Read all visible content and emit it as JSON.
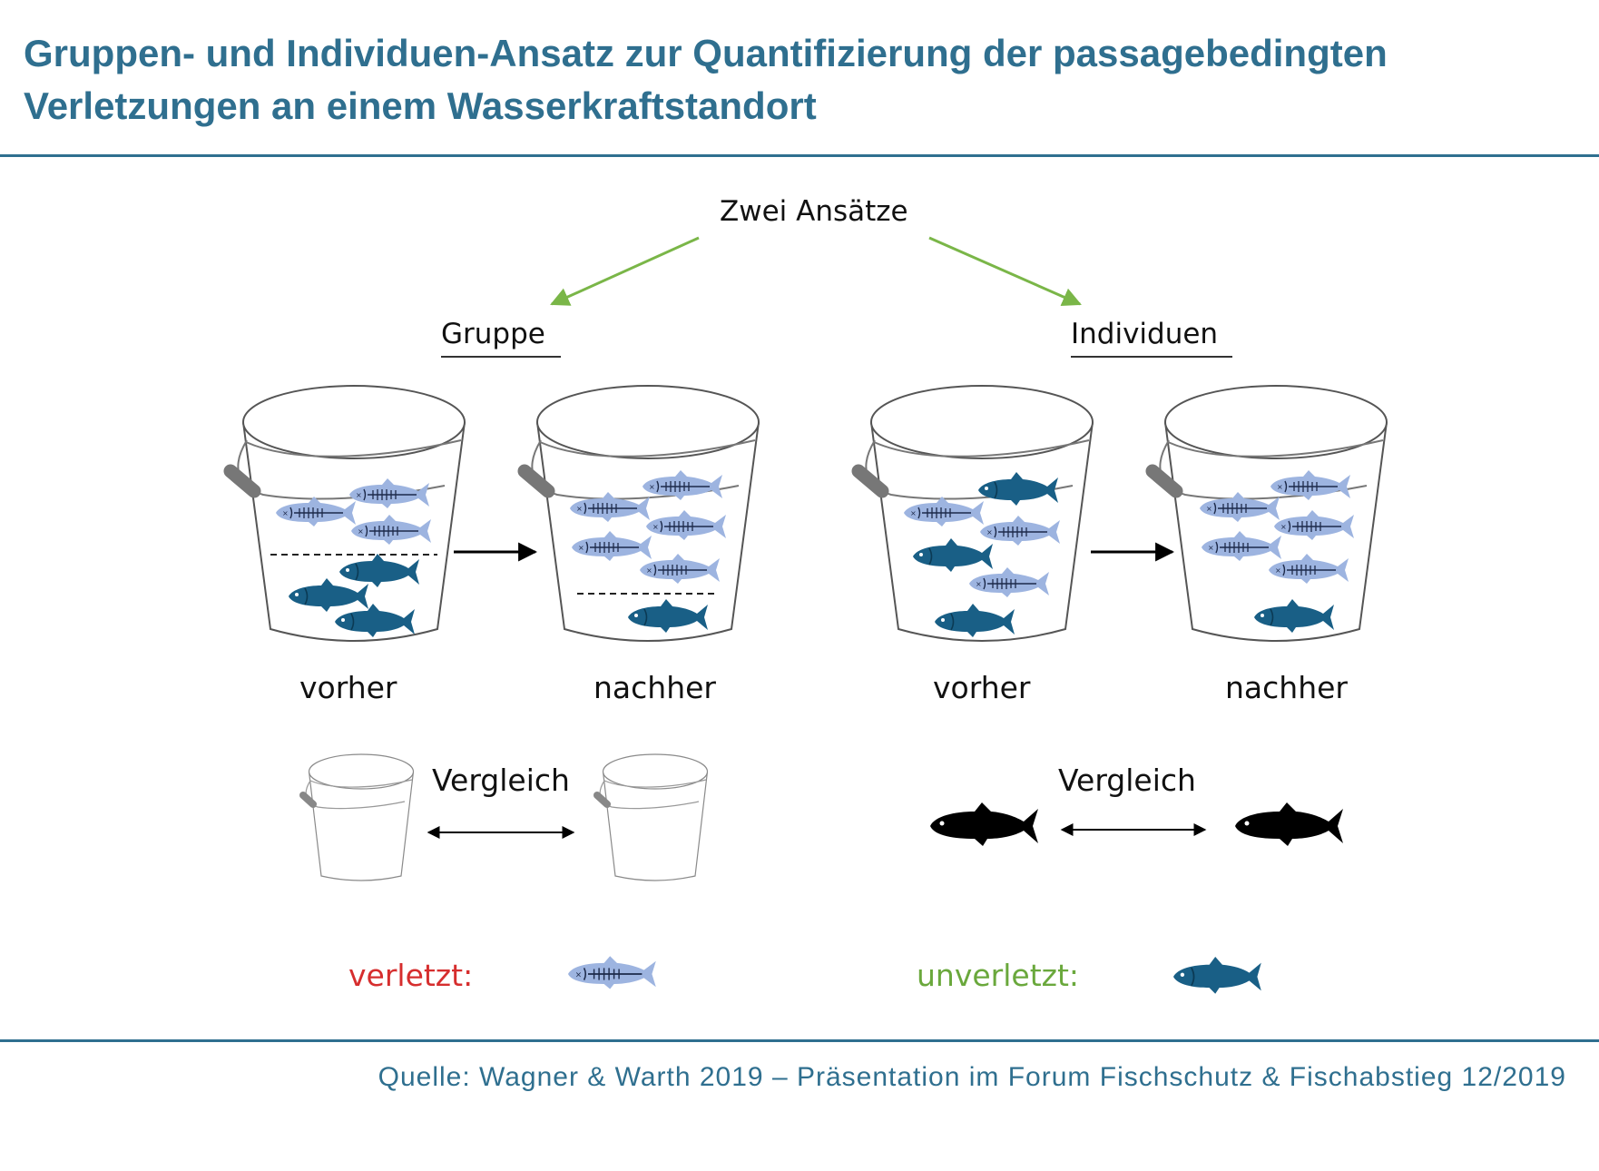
{
  "title_line1": "Gruppen- und Individuen-Ansatz zur Quantifizierung der passagebedingten",
  "title_line2": "Verletzungen an einem Wasserkraftstandort",
  "top_label": "Zwei Ansätze",
  "group": {
    "heading": "Gruppe",
    "before": "vorher",
    "after": "nachher",
    "compare": "Vergleich"
  },
  "individual": {
    "heading": "Individuen",
    "before": "vorher",
    "after": "nachher",
    "compare": "Vergleich"
  },
  "legend": {
    "injured": "verletzt:",
    "uninjured": "unverletzt:"
  },
  "source": "Quelle: Wagner & Warth 2019 – Präsentation im Forum Fischschutz & Fischabstieg 12/2019",
  "colors": {
    "title": "#2f6f8f",
    "injured_fish": "#9db4e0",
    "healthy_fish": "#195f86",
    "arrow_green": "#7ab648",
    "injured_label": "#d62e2e",
    "uninjured_label": "#6aa83c"
  },
  "icons": [
    "bucket-icon",
    "injured-fish-icon",
    "healthy-fish-icon",
    "black-fish-icon",
    "arrow-icon"
  ]
}
